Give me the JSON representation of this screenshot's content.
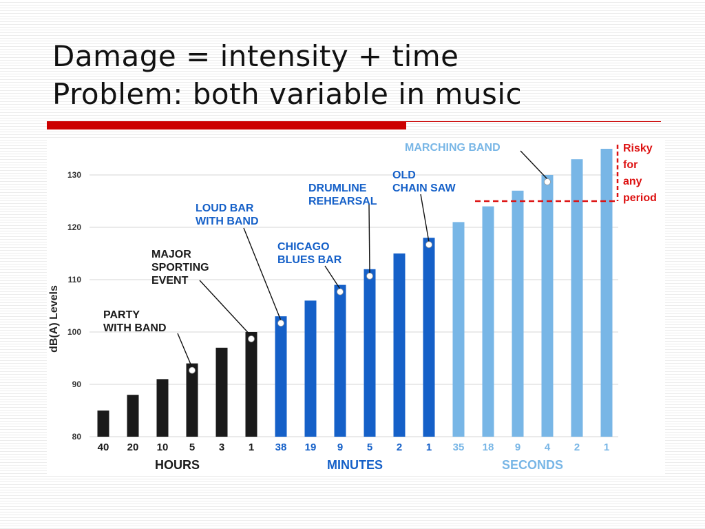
{
  "slide": {
    "title_line1": "Damage = intensity + time",
    "title_line2": "Problem: both variable in music"
  },
  "chart_data": {
    "type": "bar",
    "ylabel": "dB(A) Levels",
    "ylim": [
      80,
      135
    ],
    "yticks": [
      80,
      90,
      100,
      110,
      120,
      130
    ],
    "grid": true,
    "categories": [
      "40",
      "20",
      "10",
      "5",
      "3",
      "1",
      "38",
      "19",
      "9",
      "5",
      "2",
      "1",
      "35",
      "18",
      "9",
      "4",
      "2",
      "1"
    ],
    "values": [
      85,
      88,
      91,
      94,
      97,
      100,
      103,
      106,
      109,
      112,
      115,
      118,
      121,
      124,
      127,
      130,
      133,
      136
    ],
    "groups": [
      {
        "label": "HOURS",
        "start": 0,
        "end": 5,
        "color": "#1a1a1a"
      },
      {
        "label": "MINUTES",
        "start": 6,
        "end": 11,
        "color": "#1560c8"
      },
      {
        "label": "SECONDS",
        "start": 12,
        "end": 17,
        "color": "#78b6e6"
      }
    ],
    "annotations": [
      {
        "lines": [
          "PARTY",
          "WITH BAND"
        ],
        "bar": 3,
        "color": "#1a1a1a"
      },
      {
        "lines": [
          "MAJOR",
          "SPORTING",
          "EVENT"
        ],
        "bar": 5,
        "color": "#1a1a1a"
      },
      {
        "lines": [
          "LOUD BAR",
          "WITH BAND"
        ],
        "bar": 6,
        "color": "#1560c8"
      },
      {
        "lines": [
          "CHICAGO",
          "BLUES BAR"
        ],
        "bar": 8,
        "color": "#1560c8"
      },
      {
        "lines": [
          "DRUMLINE",
          "REHEARSAL"
        ],
        "bar": 9,
        "color": "#1560c8"
      },
      {
        "lines": [
          "OLD",
          "CHAIN SAW"
        ],
        "bar": 11,
        "color": "#1560c8"
      },
      {
        "lines": [
          "MARCHING BAND"
        ],
        "bar": 15,
        "color": "#78b6e6"
      }
    ],
    "threshold": {
      "value": 125,
      "label_lines": [
        "Risky",
        "for",
        "any",
        "period"
      ],
      "color": "#dd1111"
    }
  }
}
